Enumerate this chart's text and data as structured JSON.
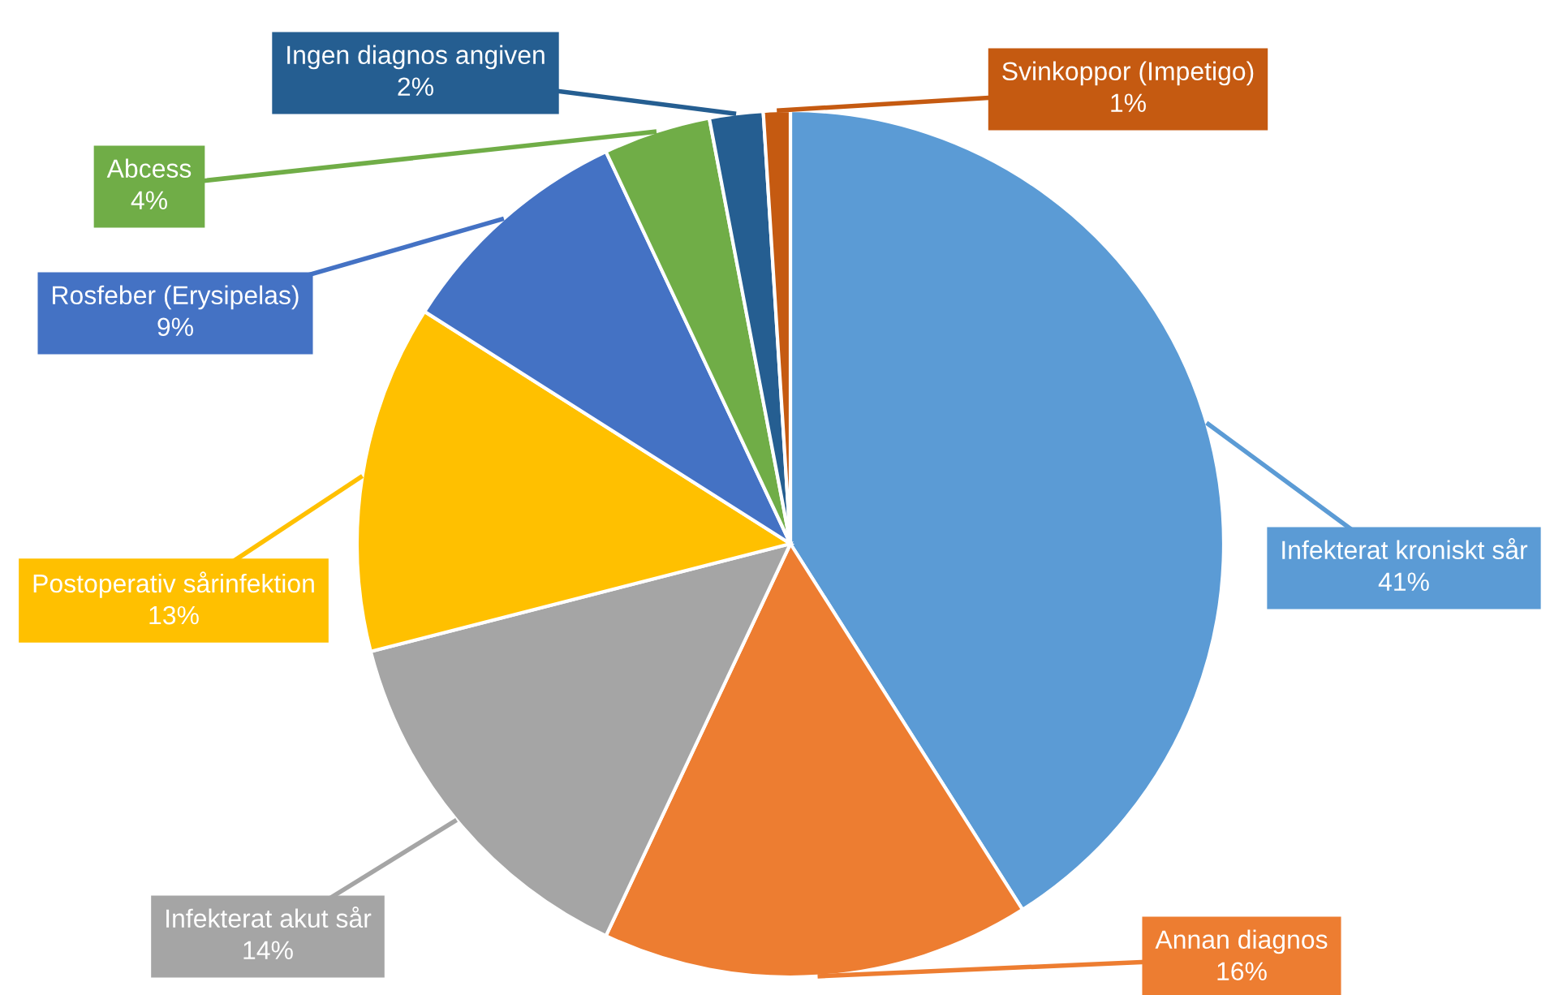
{
  "chart_data": {
    "type": "pie",
    "categories": [
      "Infekterat kroniskt sår",
      "Annan diagnos",
      "Infekterat akut sår",
      "Postoperativ sårinfektion",
      "Rosfeber (Erysipelas)",
      "Abcess",
      "Ingen diagnos angiven",
      "Svinkoppor (Impetigo)"
    ],
    "values": [
      41,
      16,
      14,
      13,
      9,
      4,
      2,
      1
    ],
    "colors": [
      "#5b9bd5",
      "#ed7d31",
      "#a5a5a5",
      "#ffc000",
      "#4472c4",
      "#70ad47",
      "#255e91",
      "#c55a11"
    ],
    "value_labels": [
      "41%",
      "16%",
      "14%",
      "13%",
      "9%",
      "4%",
      "2%",
      "1%"
    ],
    "legend": false
  }
}
